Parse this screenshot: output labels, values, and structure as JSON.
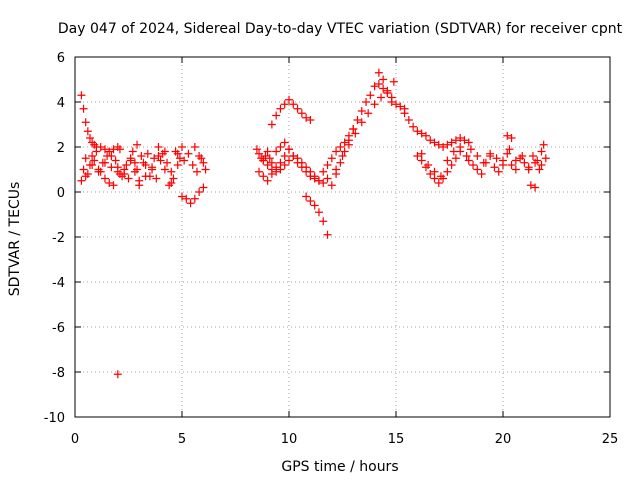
{
  "chart_data": {
    "type": "scatter",
    "title": "Day 047 of 2024, Sidereal Day-to-day VTEC variation (SDTVAR) for receiver cpnt",
    "xlabel": "GPS time / hours",
    "ylabel": "SDTVAR / TECUs",
    "xlim": [
      0,
      25
    ],
    "ylim": [
      -10,
      6
    ],
    "xticks": [
      0,
      5,
      10,
      15,
      20,
      25
    ],
    "yticks": [
      6,
      4,
      2,
      0,
      -2,
      -4,
      -6,
      -8,
      -10
    ],
    "xtick_labels": [
      "0",
      "5",
      "10",
      "15",
      "20",
      "25"
    ],
    "ytick_labels": [
      "6",
      "4",
      "2",
      "0",
      "-2",
      "-4",
      "-6",
      "-8",
      "-10"
    ],
    "grid": true,
    "marker": "plus",
    "series": [
      {
        "name": "SDTVAR",
        "color": "#ff0000",
        "x": [
          0.3,
          0.4,
          0.5,
          0.6,
          0.7,
          0.8,
          0.9,
          1.0,
          1.2,
          1.4,
          1.6,
          1.8,
          2.0,
          2.1,
          0.3,
          0.5,
          0.7,
          0.9,
          1.1,
          1.3,
          1.5,
          1.7,
          1.9,
          2.1,
          2.3,
          2.5,
          0.4,
          0.6,
          0.8,
          1.0,
          1.2,
          1.4,
          1.6,
          1.8,
          2.0,
          2.2,
          2.4,
          2.6,
          2.8,
          0.5,
          0.8,
          1.1,
          1.4,
          1.7,
          2.0,
          2.3,
          2.6,
          2.9,
          2.7,
          2.9,
          3.1,
          3.3,
          3.5,
          3.7,
          3.9,
          4.1,
          4.3,
          4.5,
          4.7,
          4.9,
          2.8,
          3.0,
          3.2,
          3.4,
          3.6,
          3.8,
          4.0,
          4.2,
          4.4,
          4.6,
          4.8,
          5.0,
          3.0,
          3.3,
          3.6,
          3.9,
          4.2,
          4.5,
          4.8,
          5.0,
          5.2,
          5.4,
          5.6,
          5.8,
          6.0,
          5.1,
          5.3,
          5.5,
          5.7,
          5.9,
          6.1,
          5.6,
          5.8,
          6.0,
          2.0,
          8.5,
          8.6,
          8.7,
          8.8,
          8.9,
          9.0,
          9.1,
          9.2,
          8.6,
          8.8,
          9.0,
          9.2,
          9.4,
          9.6,
          9.8,
          10.0,
          8.8,
          9.0,
          9.2,
          9.4,
          9.6,
          9.8,
          10.0,
          10.2,
          10.4,
          10.6,
          10.8,
          11.0,
          11.2,
          11.4,
          11.6,
          11.8,
          9.4,
          9.6,
          9.8,
          10.0,
          10.2,
          10.4,
          10.6,
          10.8,
          11.0,
          11.2,
          11.4,
          11.6,
          11.8,
          12.0,
          12.2,
          12.4,
          12.6,
          12.8,
          13.0,
          9.2,
          9.4,
          9.6,
          9.8,
          10.0,
          10.2,
          10.4,
          10.6,
          10.8,
          11.0,
          10.8,
          11.0,
          11.2,
          11.4,
          11.6,
          11.8,
          12.0,
          12.2,
          12.4,
          12.6,
          12.8,
          13.0,
          13.2,
          13.4,
          13.6,
          13.8,
          14.0,
          14.2,
          14.4,
          14.6,
          14.8,
          12.2,
          12.5,
          12.8,
          13.1,
          13.4,
          13.7,
          14.0,
          14.3,
          14.6,
          14.9,
          14.2,
          14.4,
          14.6,
          14.8,
          15.0,
          15.2,
          15.4,
          15.4,
          15.6,
          15.8,
          16.0,
          16.2,
          16.4,
          16.6,
          16.8,
          17.0,
          17.2,
          17.4,
          17.6,
          17.8,
          18.0,
          18.2,
          18.4,
          16.0,
          16.2,
          16.4,
          16.6,
          16.8,
          17.0,
          17.2,
          17.4,
          17.6,
          17.8,
          18.0,
          16.2,
          16.5,
          16.8,
          17.1,
          17.4,
          17.7,
          18.0,
          18.3,
          18.4,
          18.6,
          18.8,
          19.0,
          19.2,
          19.4,
          19.6,
          19.8,
          20.0,
          20.2,
          20.4,
          20.6,
          20.8,
          21.0,
          21.2,
          21.4,
          21.6,
          21.8,
          22.0,
          18.5,
          18.8,
          19.1,
          19.4,
          19.7,
          20.0,
          20.3,
          20.6,
          20.9,
          21.2,
          21.5,
          21.8,
          20.2,
          20.4,
          21.3,
          21.5,
          21.7,
          21.9
        ],
        "y": [
          4.3,
          3.7,
          3.1,
          2.7,
          2.4,
          2.2,
          2.1,
          2.0,
          2.0,
          1.9,
          1.8,
          1.9,
          2.0,
          1.9,
          0.5,
          0.7,
          1.2,
          1.4,
          1.0,
          1.3,
          1.6,
          1.1,
          1.4,
          0.8,
          1.0,
          0.6,
          1.0,
          0.8,
          1.6,
          1.8,
          0.9,
          0.6,
          0.4,
          0.3,
          0.9,
          0.7,
          1.2,
          1.5,
          1.3,
          1.5,
          1.2,
          0.9,
          1.3,
          1.6,
          1.1,
          0.8,
          1.4,
          1.0,
          1.8,
          2.1,
          1.6,
          1.2,
          0.7,
          1.5,
          2.0,
          1.7,
          1.3,
          0.9,
          1.8,
          1.5,
          0.9,
          0.5,
          1.3,
          1.7,
          1.0,
          0.6,
          1.4,
          1.8,
          0.3,
          0.6,
          1.2,
          2.0,
          0.3,
          0.7,
          1.1,
          1.6,
          1.0,
          0.4,
          1.7,
          -0.2,
          -0.3,
          -0.5,
          -0.3,
          0.0,
          0.2,
          1.4,
          1.7,
          1.2,
          0.9,
          1.5,
          1.0,
          2.0,
          1.6,
          1.3,
          -8.1,
          1.9,
          1.7,
          1.5,
          1.4,
          1.6,
          1.8,
          1.5,
          1.3,
          0.9,
          0.7,
          0.5,
          0.8,
          1.1,
          1.3,
          1.6,
          1.9,
          1.4,
          1.2,
          1.0,
          0.9,
          1.0,
          1.2,
          1.4,
          1.6,
          1.5,
          1.3,
          1.1,
          0.9,
          0.7,
          0.5,
          0.4,
          0.6,
          1.8,
          2.0,
          2.2,
          1.9,
          1.6,
          1.3,
          1.1,
          0.9,
          0.7,
          0.6,
          0.5,
          0.9,
          1.2,
          1.5,
          1.8,
          2.0,
          2.2,
          2.5,
          2.8,
          3.0,
          3.4,
          3.7,
          3.9,
          4.1,
          3.9,
          3.7,
          3.5,
          3.3,
          3.2,
          -0.2,
          -0.4,
          -0.6,
          -0.9,
          -1.3,
          -1.9,
          0.3,
          0.8,
          1.3,
          1.8,
          2.3,
          2.8,
          3.2,
          3.6,
          4.0,
          4.3,
          4.7,
          4.8,
          4.6,
          4.5,
          4.2,
          1.0,
          1.6,
          2.1,
          2.6,
          3.1,
          3.5,
          3.9,
          4.2,
          4.4,
          4.9,
          5.3,
          5.0,
          4.4,
          4.0,
          3.9,
          3.8,
          3.7,
          3.5,
          3.2,
          2.9,
          2.7,
          2.6,
          2.5,
          2.3,
          2.2,
          2.1,
          2.0,
          2.1,
          2.2,
          2.3,
          2.4,
          2.3,
          2.2,
          1.6,
          1.4,
          1.1,
          0.8,
          0.6,
          0.4,
          0.6,
          0.9,
          1.2,
          1.5,
          1.8,
          1.7,
          1.2,
          0.9,
          0.7,
          1.4,
          1.8,
          2.0,
          1.6,
          1.4,
          1.2,
          1.0,
          0.8,
          1.3,
          1.6,
          1.1,
          0.9,
          1.4,
          1.7,
          1.2,
          1.0,
          1.5,
          1.3,
          1.1,
          1.6,
          1.4,
          1.2,
          1.5,
          1.9,
          1.6,
          1.3,
          1.7,
          1.5,
          1.2,
          1.9,
          1.4,
          1.6,
          1.0,
          1.3,
          1.8,
          2.5,
          2.4,
          0.3,
          0.2,
          1.0,
          2.1
        ]
      }
    ]
  }
}
